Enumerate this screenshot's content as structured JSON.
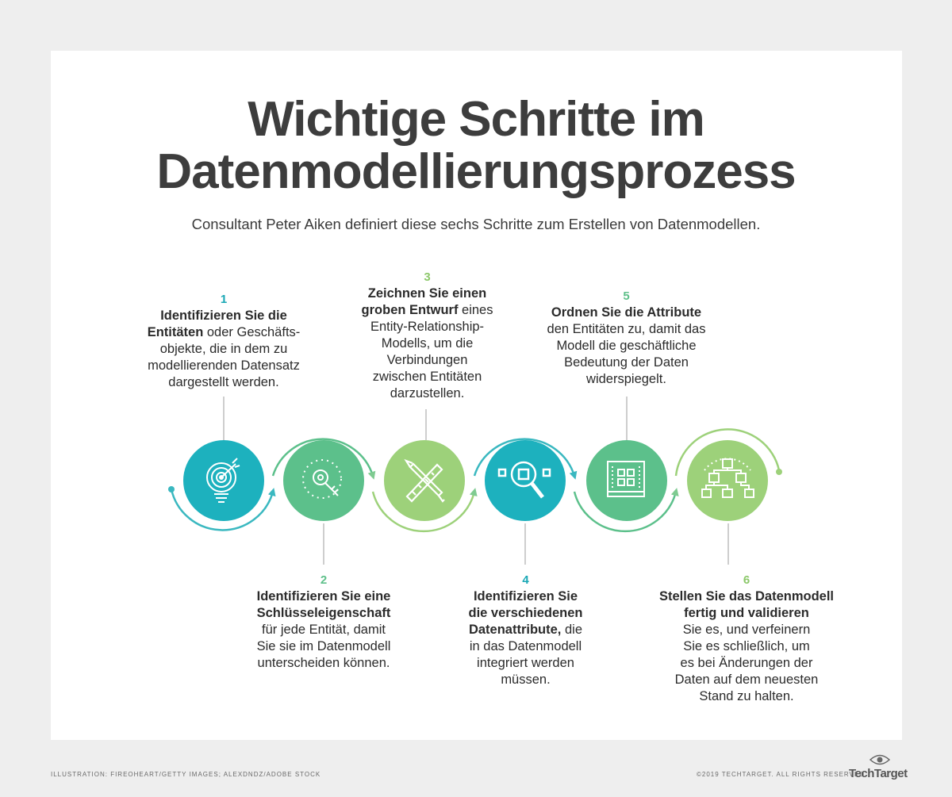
{
  "title_line1": "Wichtige Schritte im",
  "title_line2": "Datenmodellierungsprozess",
  "subtitle": "Consultant Peter Aiken definiert diese sechs Schritte zum Erstellen von Datenmodellen.",
  "colors": {
    "teal": "#1db1be",
    "green": "#5cc08b",
    "lime": "#9dd17a",
    "arrow_teal": "#3ab8c0",
    "arrow_green": "#7fcb91",
    "title": "#3d3d3d"
  },
  "steps": [
    {
      "number": "1",
      "bold1": "Identifizieren Sie die",
      "bold2": "Entitäten",
      "rest1": " oder Geschäfts-",
      "line3": "objekte, die in dem zu",
      "line4": "modellierenden Datensatz",
      "line5": "dargestellt werden.",
      "icon": "target-lightbulb-icon"
    },
    {
      "number": "2",
      "bold1": "Identifizieren Sie eine",
      "bold2": "Schlüsseleigenschaft",
      "line3": "für jede Entität, damit",
      "line4": "Sie sie im Datenmodell",
      "line5": "unterscheiden können.",
      "icon": "key-search-icon"
    },
    {
      "number": "3",
      "bold1": "Zeichnen Sie einen",
      "bold2": "groben Entwurf",
      "rest2": " eines",
      "line3": "Entity-Relationship-",
      "line4": "Modells, um die",
      "line5": "Verbindungen",
      "line6": "zwischen Entitäten",
      "line7": "darzustellen.",
      "icon": "pencil-ruler-icon"
    },
    {
      "number": "4",
      "bold1": "Identifizieren Sie",
      "bold2": "die verschiedenen",
      "bold3": "Datenattribute,",
      "rest3": " die",
      "line4": "in das Datenmodell",
      "line5": "integriert werden",
      "line6": "müssen.",
      "icon": "magnifier-icon"
    },
    {
      "number": "5",
      "bold1": "Ordnen Sie die Attribute",
      "line2": "den Entitäten zu, damit das",
      "line3": "Modell die geschäftliche",
      "line4": "Bedeutung der Daten",
      "line5": "widerspiegelt.",
      "icon": "blueprint-icon"
    },
    {
      "number": "6",
      "bold1": "Stellen Sie das Datenmodell",
      "bold2": "fertig und validieren",
      "line3": "Sie es, und verfeinern",
      "line4": "Sie es schließlich, um",
      "line5": "es bei Änderungen der",
      "line6": "Daten auf dem neuesten",
      "line7": "Stand zu halten.",
      "icon": "hierarchy-icon"
    }
  ],
  "footer": {
    "credit": "ILLUSTRATION: FIREOHEART/GETTY IMAGES; ALEXDNDZ/ADOBE STOCK",
    "copyright": "©2019 TECHTARGET. ALL RIGHTS RESERVED",
    "brand": "TechTarget"
  }
}
